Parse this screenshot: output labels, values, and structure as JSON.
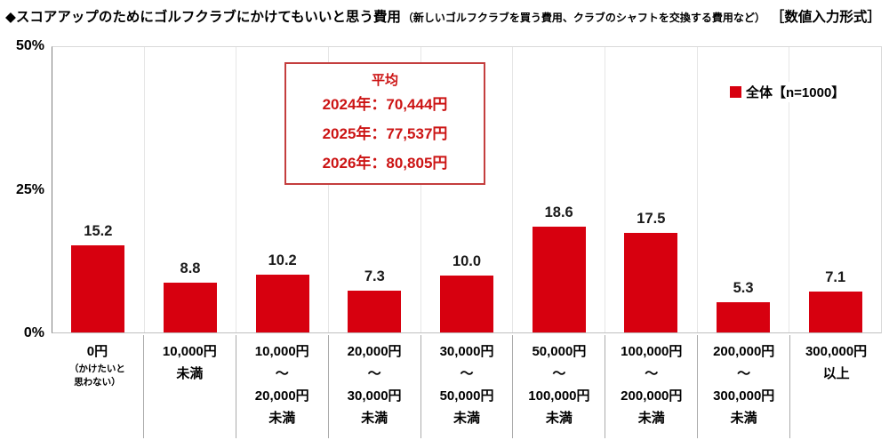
{
  "title": {
    "main": "◆スコアアップのためにゴルフクラブにかけてもいいと思う費用",
    "sub": "（新しいゴルフクラブを買う費用、クラブのシャフトを交換する費用など）",
    "format": "［数値入力形式］"
  },
  "legend": {
    "label": "全体【n=1000】",
    "marker_color": "#d7000f"
  },
  "annotation": {
    "title": "平均",
    "lines": [
      "2024年：70,444円",
      "2025年：77,537円",
      "2026年：80,805円"
    ],
    "text_color": "#cc1414",
    "border_color": "#c43e3e"
  },
  "chart_data": {
    "type": "bar",
    "title": "スコアアップのためにゴルフクラブにかけてもいいと思う費用",
    "categories": [
      {
        "lines": [
          "0円"
        ],
        "sublines": [
          "（かけたいと",
          "思わない）"
        ]
      },
      {
        "lines": [
          "10,000円",
          "未満"
        ]
      },
      {
        "lines": [
          "10,000円",
          "～",
          "20,000円",
          "未満"
        ]
      },
      {
        "lines": [
          "20,000円",
          "～",
          "30,000円",
          "未満"
        ]
      },
      {
        "lines": [
          "30,000円",
          "～",
          "50,000円",
          "未満"
        ]
      },
      {
        "lines": [
          "50,000円",
          "～",
          "100,000円",
          "未満"
        ]
      },
      {
        "lines": [
          "100,000円",
          "～",
          "200,000円",
          "未満"
        ]
      },
      {
        "lines": [
          "200,000円",
          "～",
          "300,000円",
          "未満"
        ]
      },
      {
        "lines": [
          "300,000円",
          "以上"
        ]
      }
    ],
    "values": [
      15.2,
      8.8,
      10.2,
      7.3,
      10.0,
      18.6,
      17.5,
      5.3,
      7.1
    ],
    "value_labels": [
      "15.2",
      "8.8",
      "10.2",
      "7.3",
      "10.0",
      "18.6",
      "17.5",
      "5.3",
      "7.1"
    ],
    "series_name": "全体【n=1000】",
    "xlabel": "",
    "ylabel": "%",
    "ylim": [
      0,
      50
    ],
    "yticks": [
      "0%",
      "25%",
      "50%"
    ],
    "grid": "vertical-category-separators",
    "legend_position": "top-right",
    "bar_color": "#d7000f"
  }
}
